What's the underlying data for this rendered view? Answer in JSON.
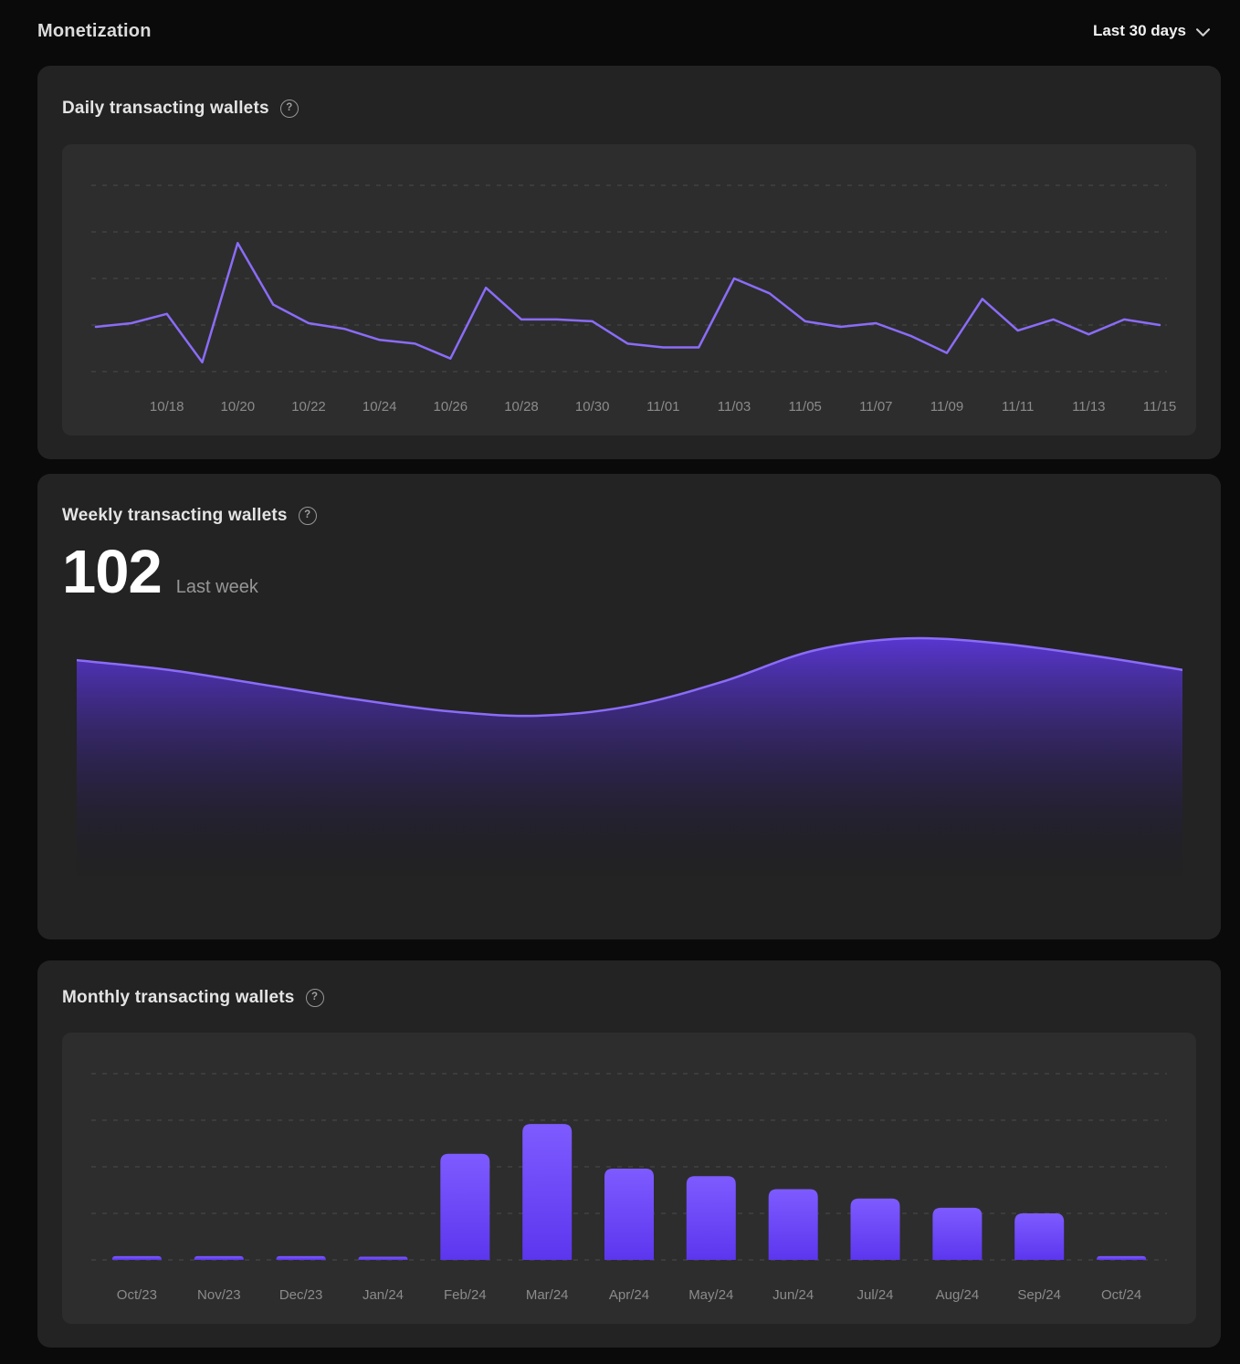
{
  "page": {
    "title": "Monetization"
  },
  "period_selector": {
    "label": "Last 30 days",
    "icon": "chevron-down-icon"
  },
  "cards": {
    "daily": {
      "title": "Daily transacting wallets",
      "help_icon": "help-icon"
    },
    "weekly": {
      "title": "Weekly transacting wallets",
      "help_icon": "help-icon",
      "stat_value": "102",
      "stat_caption": "Last week"
    },
    "monthly": {
      "title": "Monthly transacting wallets",
      "help_icon": "help-icon"
    }
  },
  "colors": {
    "page_bg": "#0a0a0a",
    "card_bg": "#232323",
    "panel_bg": "#2d2d2d",
    "accent_purple": "#7c5cfa",
    "line_purple": "#8b6cf8",
    "bar_gradient_top": "#7d5bff",
    "bar_gradient_bottom": "#5c36ee",
    "area_gradient_top": "#5d38e0",
    "area_gradient_bottom": "#151221",
    "grid_dash": "#4b4b4b",
    "axis_label": "#8b8b8b"
  },
  "chart_data": [
    {
      "id": "daily",
      "type": "line",
      "title": "Daily transacting wallets",
      "values": [
        24,
        26,
        31,
        5,
        69,
        36,
        26,
        23,
        17,
        15,
        7,
        45,
        28,
        28,
        27,
        15,
        13,
        13,
        50,
        42,
        27,
        24,
        26,
        19,
        10,
        39,
        22,
        28,
        20,
        28,
        25
      ],
      "x_tick_labels": [
        "10/18",
        "10/20",
        "10/22",
        "10/24",
        "10/26",
        "10/28",
        "10/30",
        "11/01",
        "11/03",
        "11/05",
        "11/07",
        "11/09",
        "11/11",
        "11/13",
        "11/15"
      ],
      "x_tick_first_point_index": 2,
      "x_tick_every_n_points": 2,
      "ylim": [
        0,
        100
      ],
      "gridlines": [
        0,
        25,
        50,
        75,
        100
      ],
      "grid": "dashed-horizontal",
      "legend": "none"
    },
    {
      "id": "weekly",
      "type": "area",
      "title": "Weekly transacting wallets",
      "headline_value": 102,
      "headline_label": "Last week",
      "values": [
        89,
        85,
        79,
        73,
        68,
        66,
        70,
        80,
        93,
        98,
        96,
        91,
        85
      ],
      "ylim": [
        0,
        100
      ],
      "grid": "off",
      "x_axis": "hidden",
      "y_axis": "hidden",
      "legend": "none"
    },
    {
      "id": "monthly",
      "type": "bar",
      "title": "Monthly transacting wallets",
      "categories": [
        "Oct/23",
        "Nov/23",
        "Dec/23",
        "Jan/24",
        "Feb/24",
        "Mar/24",
        "Apr/24",
        "May/24",
        "Jun/24",
        "Jul/24",
        "Aug/24",
        "Sep/24",
        "Oct/24"
      ],
      "values": [
        2,
        2,
        2,
        1.5,
        57,
        73,
        49,
        45,
        38,
        33,
        28,
        25,
        2
      ],
      "ylim": [
        0,
        100
      ],
      "gridlines": [
        0,
        25,
        50,
        75,
        100
      ],
      "grid": "dashed-horizontal",
      "legend": "none"
    }
  ]
}
